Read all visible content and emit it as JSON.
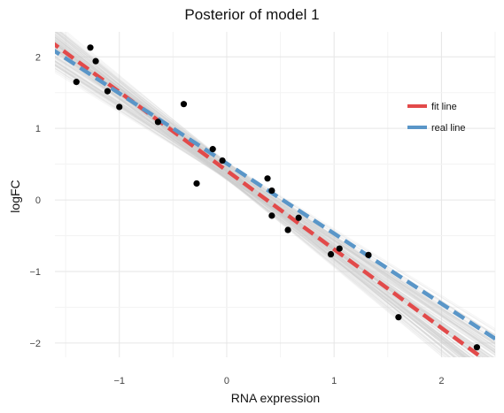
{
  "chart_data": {
    "type": "scatter",
    "title": "Posterior of model 1",
    "xlabel": "RNA expression",
    "ylabel": "logFC",
    "xlim": [
      -1.6,
      2.5
    ],
    "ylim": [
      -2.2,
      2.35
    ],
    "x_ticks": [
      -1,
      0,
      1,
      2
    ],
    "y_ticks": [
      -2,
      -1,
      0,
      1,
      2
    ],
    "x_tick_labels": [
      "−1",
      "0",
      "1",
      "2"
    ],
    "y_tick_labels": [
      "−2",
      "−1",
      "0",
      "1",
      "2"
    ],
    "grid": true,
    "legend_position": "right",
    "points": [
      {
        "x": -1.4,
        "y": 1.65
      },
      {
        "x": -1.27,
        "y": 2.13
      },
      {
        "x": -1.22,
        "y": 1.94
      },
      {
        "x": -1.11,
        "y": 1.52
      },
      {
        "x": -1.0,
        "y": 1.3
      },
      {
        "x": -0.64,
        "y": 1.09
      },
      {
        "x": -0.4,
        "y": 1.34
      },
      {
        "x": -0.28,
        "y": 0.23
      },
      {
        "x": -0.13,
        "y": 0.71
      },
      {
        "x": -0.04,
        "y": 0.55
      },
      {
        "x": 0.38,
        "y": 0.3
      },
      {
        "x": 0.42,
        "y": 0.13
      },
      {
        "x": 0.42,
        "y": -0.22
      },
      {
        "x": 0.57,
        "y": -0.42
      },
      {
        "x": 0.67,
        "y": -0.25
      },
      {
        "x": 0.97,
        "y": -0.76
      },
      {
        "x": 1.05,
        "y": -0.68
      },
      {
        "x": 1.32,
        "y": -0.77
      },
      {
        "x": 1.6,
        "y": -1.64
      },
      {
        "x": 2.33,
        "y": -2.06
      }
    ],
    "lines": [
      {
        "name": "fit line",
        "color": "#e24a4a",
        "intercept": 0.41,
        "slope": -1.1
      },
      {
        "name": "real line",
        "color": "#5a96c8",
        "intercept": 0.51,
        "slope": -0.98
      }
    ],
    "posterior_band": {
      "color": "#cccccc",
      "intercept_range": [
        0.28,
        0.54
      ],
      "slope_range": [
        -1.25,
        -0.92
      ]
    }
  }
}
